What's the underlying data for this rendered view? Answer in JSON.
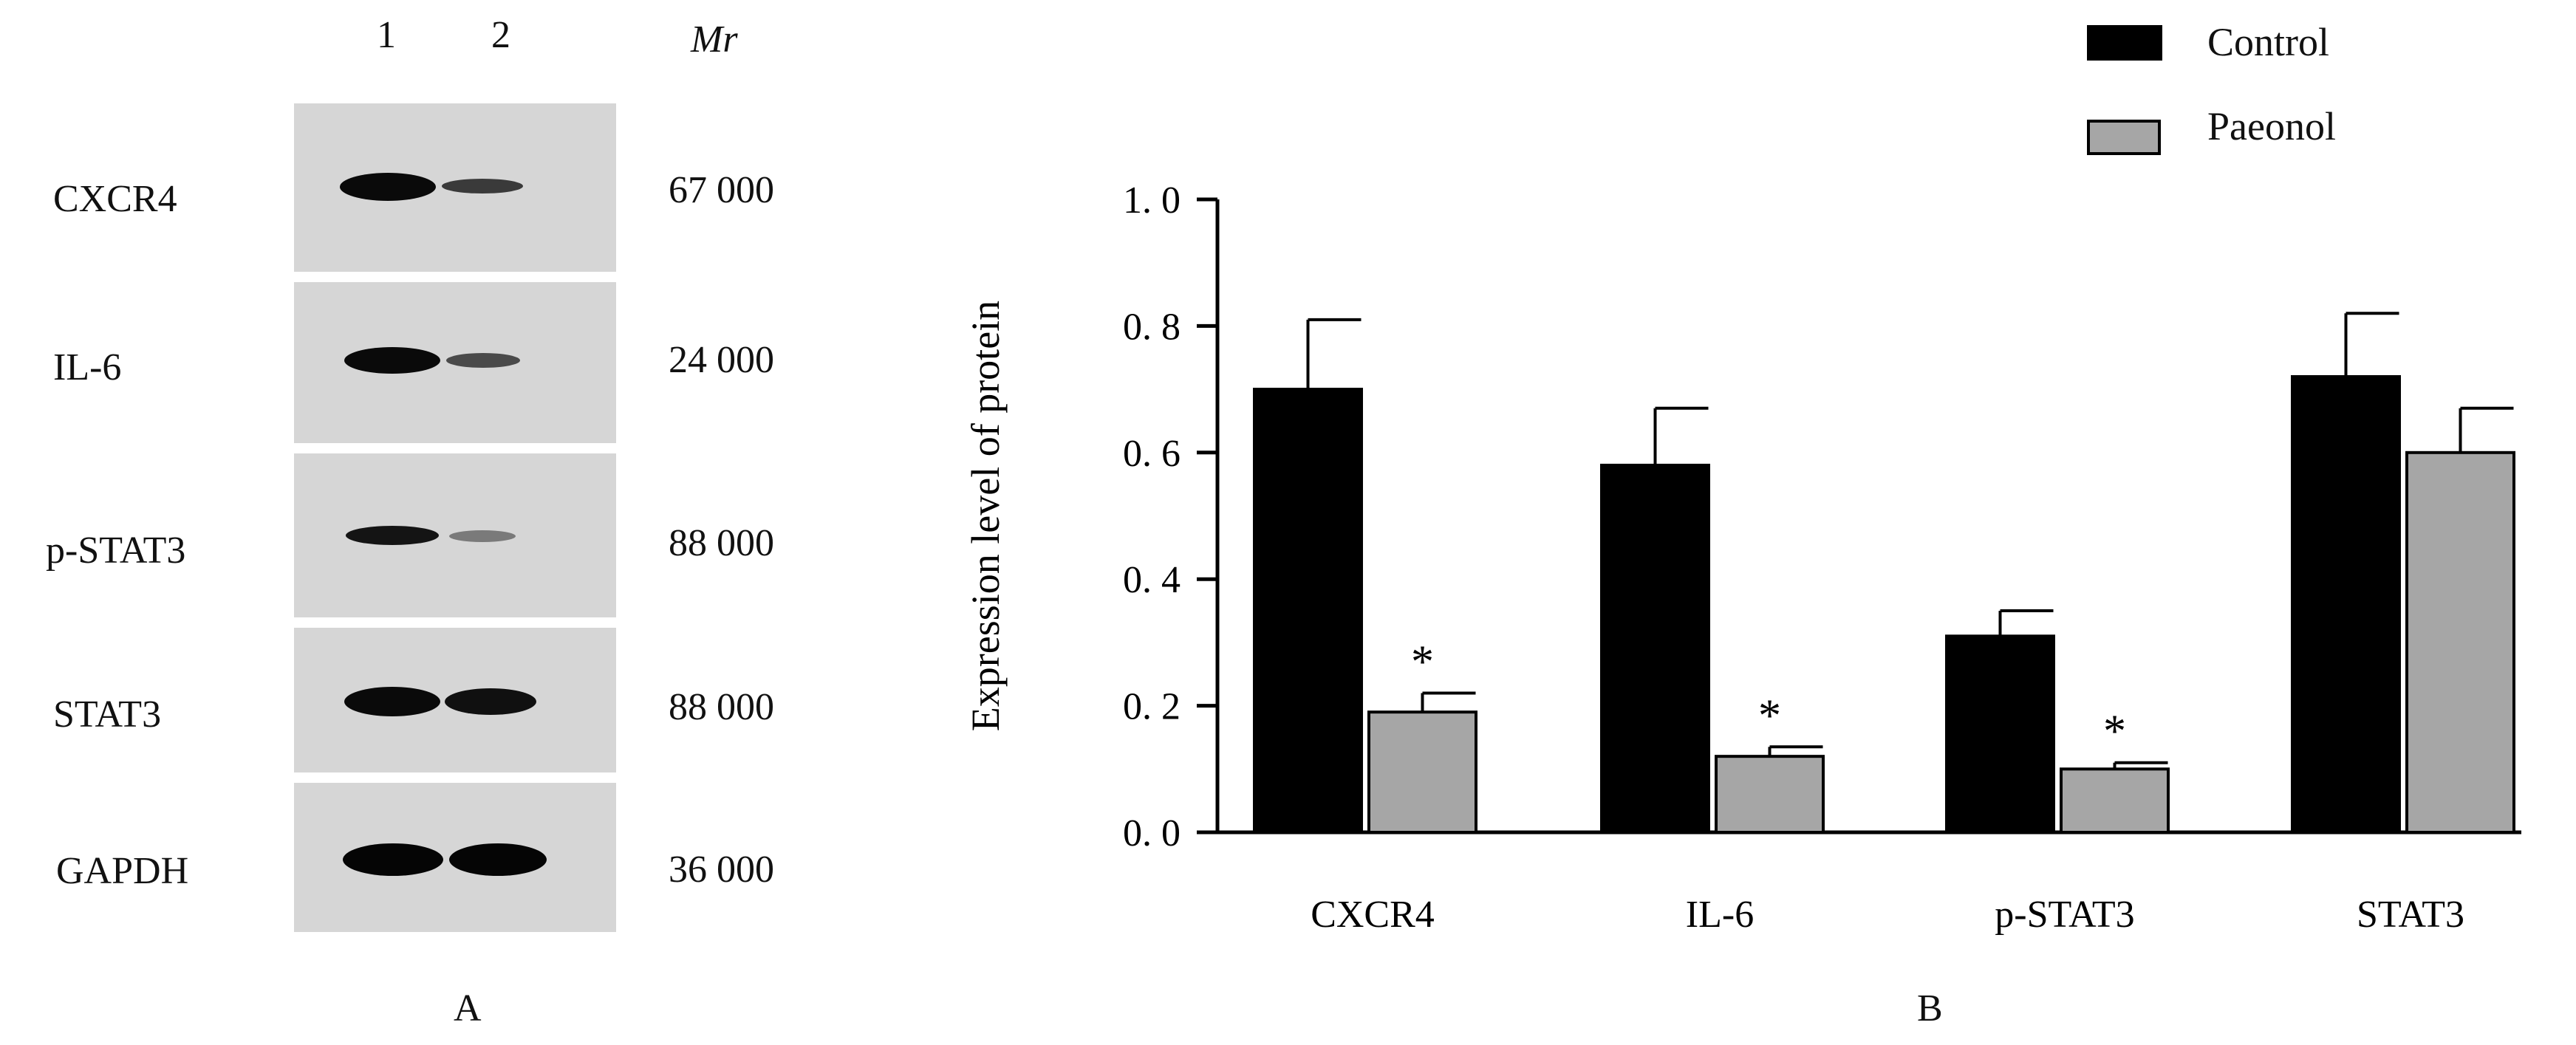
{
  "panel_a": {
    "label": "A",
    "lanes": [
      "1",
      "2"
    ],
    "mr_header": "Mr",
    "rows": [
      {
        "name": "CXCR4",
        "mr": "67 000",
        "lane1_intensity": 0.95,
        "lane2_intensity": 0.55
      },
      {
        "name": "IL-6",
        "mr": "24 000",
        "lane1_intensity": 0.9,
        "lane2_intensity": 0.45
      },
      {
        "name": "p-STAT3",
        "mr": "88 000",
        "lane1_intensity": 0.85,
        "lane2_intensity": 0.3
      },
      {
        "name": "STAT3",
        "mr": "88 000",
        "lane1_intensity": 0.95,
        "lane2_intensity": 0.85
      },
      {
        "name": "GAPDH",
        "mr": "36 000",
        "lane1_intensity": 0.95,
        "lane2_intensity": 0.95
      }
    ]
  },
  "panel_b": {
    "label": "B"
  },
  "chart_data": {
    "type": "bar",
    "categories": [
      "CXCR4",
      "IL-6",
      "p-STAT3",
      "STAT3"
    ],
    "series": [
      {
        "name": "Control",
        "color": "#000000",
        "values": [
          0.7,
          0.58,
          0.31,
          0.72
        ],
        "errors": [
          0.11,
          0.09,
          0.04,
          0.1
        ]
      },
      {
        "name": "Paeonol",
        "color": "#a6a6a6",
        "values": [
          0.19,
          0.12,
          0.1,
          0.6
        ],
        "errors": [
          0.03,
          0.015,
          0.01,
          0.07
        ]
      }
    ],
    "significance": [
      "*",
      "*",
      "*",
      ""
    ],
    "ylabel": "Expression level of protein",
    "ylim": [
      0,
      1.0
    ],
    "yticks": [
      "0. 0",
      "0. 2",
      "0. 4",
      "0. 6",
      "0. 8",
      "1. 0"
    ],
    "ytick_values": [
      0,
      0.2,
      0.4,
      0.6,
      0.8,
      1.0
    ],
    "legend_position": "top-right",
    "grid": false
  }
}
